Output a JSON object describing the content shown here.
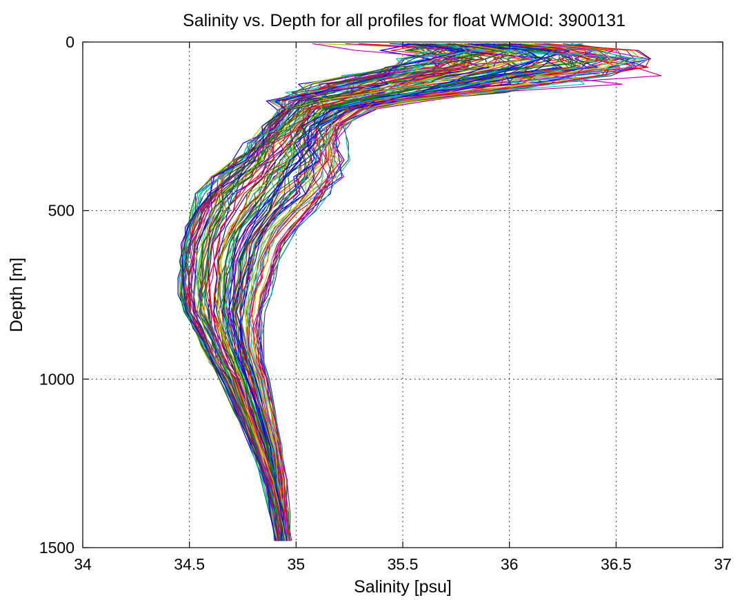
{
  "chart_data": {
    "type": "line",
    "title": "Salinity vs. Depth for all profiles for float WMOId: 3900131",
    "xlabel": "Salinity [psu]",
    "ylabel": "Depth [m]",
    "xlim": [
      34,
      37
    ],
    "ylim": [
      0,
      1500
    ],
    "y_reversed": true,
    "grid": true,
    "legend": "none",
    "x_ticks": [
      34,
      34.5,
      35,
      35.5,
      36,
      36.5,
      37
    ],
    "x_tick_labels": [
      "34",
      "34.5",
      "35",
      "35.5",
      "36",
      "36.5",
      "37"
    ],
    "y_ticks": [
      0,
      500,
      1000,
      1500
    ],
    "y_tick_labels": [
      "0",
      "500",
      "1000",
      "1500"
    ],
    "series_colors": [
      "#0000ff",
      "#008000",
      "#ff0000",
      "#00bfbf",
      "#bf00bf",
      "#bfbf00",
      "#404040"
    ],
    "depth_levels": [
      5,
      25,
      50,
      75,
      100,
      125,
      150,
      175,
      200,
      250,
      300,
      350,
      400,
      450,
      500,
      550,
      600,
      650,
      700,
      750,
      800,
      850,
      900,
      950,
      1000,
      1100,
      1200,
      1300,
      1400,
      1480
    ],
    "envelope": {
      "description_free_values_note": "",
      "fresh": [
        35.55,
        35.7,
        35.55,
        35.45,
        35.3,
        35.12,
        35.05,
        34.98,
        34.92,
        34.88,
        34.8,
        34.73,
        34.62,
        34.55,
        34.52,
        34.49,
        34.47,
        34.46,
        34.46,
        34.46,
        34.48,
        34.52,
        34.56,
        34.6,
        34.65,
        34.72,
        34.79,
        34.85,
        34.89,
        34.91
      ],
      "salty": [
        36.25,
        36.55,
        36.7,
        36.65,
        36.4,
        36.2,
        35.9,
        35.55,
        35.35,
        35.22,
        35.22,
        35.24,
        35.22,
        35.18,
        35.1,
        35.02,
        34.96,
        34.93,
        34.91,
        34.88,
        34.85,
        34.84,
        34.84,
        34.85,
        34.87,
        34.9,
        34.93,
        34.95,
        34.96,
        34.97
      ]
    },
    "profile_count": 120
  }
}
